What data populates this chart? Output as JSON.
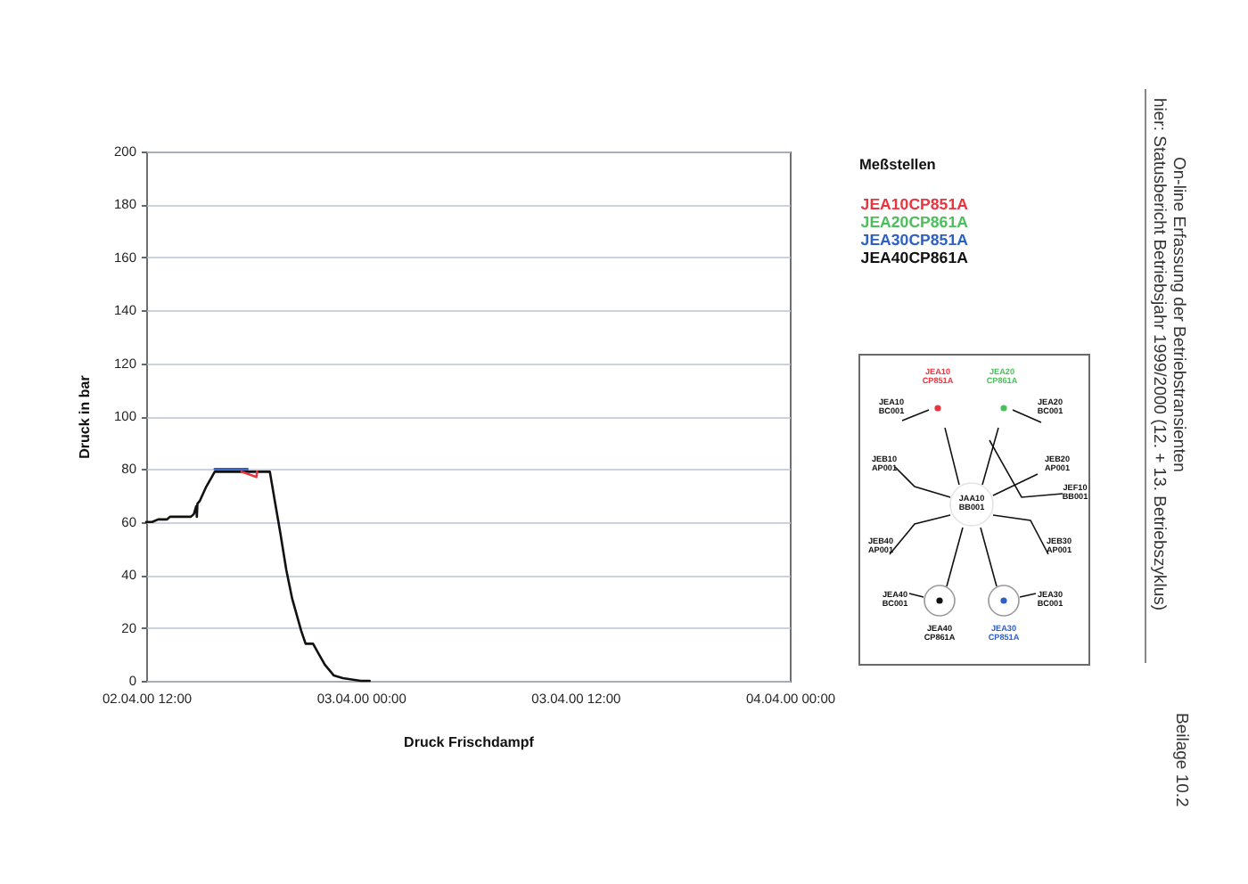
{
  "chart_data": {
    "type": "line",
    "title": "On-line Erfassung der Betriebstransienten",
    "subtitle": "hier: Statusbericht Betriebsjahr 1999/2000 (12. + 13. Betriebszyklus)",
    "xlabel": "Druck Frischdampf",
    "ylabel": "Druck in bar",
    "legend_title": "Meßstellen",
    "legend": "top right",
    "grid": "y",
    "xlim": [
      "2000-04-02T12:00",
      "2000-04-04T00:00"
    ],
    "xticks": [
      {
        "value": "2000-04-02T12:00",
        "label": "02.04.00 12:00"
      },
      {
        "value": "2000-04-03T00:00",
        "label": "03.04.00 00:00"
      },
      {
        "value": "2000-04-03T12:00",
        "label": "03.04.00 12:00"
      },
      {
        "value": "2000-04-04T00:00",
        "label": "04.04.00 00:00"
      }
    ],
    "ylim": [
      0,
      200
    ],
    "yticks": [
      0,
      20,
      40,
      60,
      80,
      100,
      120,
      140,
      160,
      180,
      200
    ],
    "annotations": [
      "Beilage 10.2",
      "JEA10 CP851A",
      "JEA20 CP861A",
      "JEA10 BC001",
      "JEA20 BC001",
      "JEB10 AP001",
      "JEB20 AP001",
      "JEF10 BB001",
      "JAA10 BB001",
      "JEB40 AP001",
      "JEB30 AP001",
      "JEA40 BC001",
      "JEA30 BC001",
      "JEA40 CP861A",
      "JEA30 CP851A"
    ],
    "series": [
      {
        "name": "JEA10CP851A",
        "color": "#e8353f",
        "x": [
          "2000-04-02T17:20",
          "2000-04-02T18:10",
          "2000-04-02T18:12"
        ],
        "values": [
          79,
          77,
          79
        ]
      },
      {
        "name": "JEA20CP861A",
        "color": "#4cbf5c"
      },
      {
        "name": "JEA30CP851A",
        "color": "#2d5fc4",
        "x": [
          "2000-04-02T15:50",
          "2000-04-02T17:40"
        ],
        "values": [
          80,
          80
        ]
      },
      {
        "name": "JEA40CP861A",
        "color": "#111111",
        "x": [
          "2000-04-02T12:00",
          "2000-04-02T12:20",
          "2000-04-02T12:40",
          "2000-04-02T13:10",
          "2000-04-02T13:20",
          "2000-04-02T14:30",
          "2000-04-02T14:40",
          "2000-04-02T14:48",
          "2000-04-02T14:50",
          "2000-04-02T14:52",
          "2000-04-02T15:00",
          "2000-04-02T15:20",
          "2000-04-02T15:40",
          "2000-04-02T15:50",
          "2000-04-02T18:55",
          "2000-04-02T19:10",
          "2000-04-02T19:30",
          "2000-04-02T19:50",
          "2000-04-02T20:10",
          "2000-04-02T20:40",
          "2000-04-02T20:55",
          "2000-04-02T21:20",
          "2000-04-02T21:40",
          "2000-04-02T22:00",
          "2000-04-02T22:30",
          "2000-04-02T23:00",
          "2000-04-03T00:00",
          "2000-04-03T00:30"
        ],
        "values": [
          60,
          60,
          61,
          61,
          62,
          62,
          63,
          66,
          62,
          67,
          68,
          73,
          77,
          79,
          79,
          69,
          56,
          42,
          31,
          19,
          14,
          14,
          10,
          6,
          2,
          1,
          0,
          0
        ]
      }
    ]
  }
}
